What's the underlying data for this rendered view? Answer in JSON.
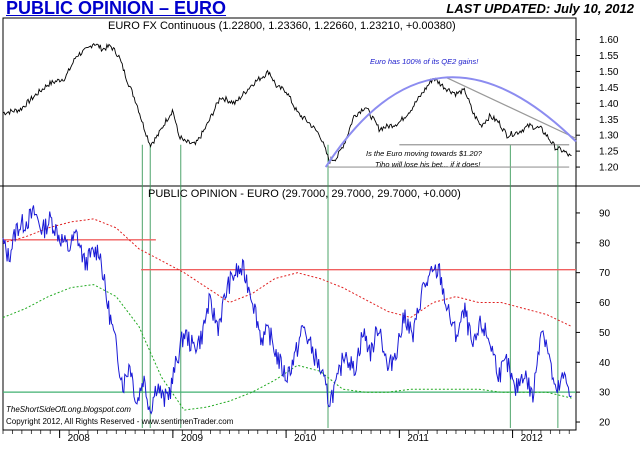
{
  "header": {
    "title": "PUBLIC OPINION – EURO",
    "updated": "LAST UPDATED:  July 10, 2012"
  },
  "colors": {
    "title": "#0000cc",
    "price": "#000000",
    "opinion": "#1a1ad6",
    "upper_band": "#e02020",
    "lower_band": "#22aa22",
    "threshold_high": "#f06060",
    "threshold_low": "#40b070",
    "trend_curve": "#8c8cf0",
    "vertical_markers": "#3a9a5a",
    "ann_blue": "#1a1acc"
  },
  "source_text": "TheShortSideOfLong.blogspot.com",
  "copyright": "Copyright 2012, All Rights Reserved - www.sentimenTrader.com",
  "chart_data": [
    {
      "type": "line",
      "title": "EURO FX Continuous (1.22800, 1.23360, 1.22660, 1.23210, +0.00380)",
      "ylim": [
        1.15,
        1.63
      ],
      "yticks": [
        1.2,
        1.25,
        1.3,
        1.35,
        1.4,
        1.45,
        1.5,
        1.55,
        1.6
      ],
      "ytick_labels": [
        "1.20",
        "1.25",
        "1.30",
        "1.35",
        "1.40",
        "1.45",
        "1.50",
        "1.55",
        "1.60"
      ],
      "series": [
        {
          "name": "EURO FX Continuous",
          "x": [
            2007.5,
            2007.65,
            2007.8,
            2007.9,
            2008.05,
            2008.15,
            2008.25,
            2008.3,
            2008.38,
            2008.45,
            2008.52,
            2008.6,
            2008.68,
            2008.74,
            2008.8,
            2008.87,
            2008.93,
            2009.0,
            2009.05,
            2009.1,
            2009.2,
            2009.3,
            2009.42,
            2009.55,
            2009.7,
            2009.85,
            2009.92,
            2010.0,
            2010.1,
            2010.2,
            2010.3,
            2010.38,
            2010.45,
            2010.52,
            2010.6,
            2010.7,
            2010.82,
            2010.92,
            2011.0,
            2011.1,
            2011.2,
            2011.3,
            2011.4,
            2011.5,
            2011.58,
            2011.65,
            2011.72,
            2011.8,
            2011.88,
            2011.95,
            2012.05,
            2012.15,
            2012.25,
            2012.3,
            2012.38,
            2012.45,
            2012.52
          ],
          "values": [
            1.37,
            1.38,
            1.43,
            1.46,
            1.48,
            1.55,
            1.57,
            1.59,
            1.57,
            1.58,
            1.55,
            1.47,
            1.4,
            1.33,
            1.27,
            1.3,
            1.34,
            1.38,
            1.3,
            1.28,
            1.27,
            1.33,
            1.42,
            1.4,
            1.46,
            1.5,
            1.45,
            1.44,
            1.37,
            1.34,
            1.3,
            1.22,
            1.23,
            1.28,
            1.36,
            1.39,
            1.32,
            1.33,
            1.34,
            1.38,
            1.43,
            1.48,
            1.45,
            1.43,
            1.44,
            1.37,
            1.33,
            1.36,
            1.34,
            1.3,
            1.31,
            1.33,
            1.32,
            1.3,
            1.26,
            1.25,
            1.23
          ]
        }
      ],
      "annotations": [
        "Euro has 100% of its QE2 gains!",
        "Is the Euro moving towards $1.20?",
        "Tiho will lose his bet... if it does!"
      ]
    },
    {
      "type": "line",
      "title": "PUBLIC OPINION - EURO (29.7000, 29.7000, 29.7000, +0.000)",
      "ylim": [
        18,
        95
      ],
      "yticks": [
        20,
        30,
        40,
        50,
        60,
        70,
        80,
        90
      ],
      "ytick_labels": [
        "20",
        "30",
        "40",
        "50",
        "60",
        "70",
        "80",
        "90"
      ],
      "x_tick_labels": [
        "2008",
        "2009",
        "2010",
        "2011",
        "2012"
      ],
      "x_ticks": [
        2008,
        2009,
        2010,
        2011,
        2012
      ],
      "series": [
        {
          "name": "Public Opinion",
          "x": [
            2007.5,
            2007.55,
            2007.62,
            2007.7,
            2007.78,
            2007.85,
            2007.92,
            2008.0,
            2008.08,
            2008.15,
            2008.22,
            2008.28,
            2008.35,
            2008.42,
            2008.5,
            2008.56,
            2008.62,
            2008.68,
            2008.74,
            2008.8,
            2008.86,
            2008.92,
            2008.98,
            2009.03,
            2009.1,
            2009.18,
            2009.25,
            2009.32,
            2009.4,
            2009.48,
            2009.55,
            2009.62,
            2009.7,
            2009.78,
            2009.85,
            2009.92,
            2010.0,
            2010.08,
            2010.15,
            2010.22,
            2010.3,
            2010.38,
            2010.45,
            2010.52,
            2010.6,
            2010.68,
            2010.75,
            2010.82,
            2010.9,
            2010.98,
            2011.05,
            2011.12,
            2011.2,
            2011.28,
            2011.35,
            2011.42,
            2011.5,
            2011.58,
            2011.65,
            2011.72,
            2011.8,
            2011.88,
            2011.95,
            2012.02,
            2012.1,
            2012.18,
            2012.25,
            2012.3,
            2012.38,
            2012.45,
            2012.52
          ],
          "values": [
            80,
            75,
            85,
            87,
            90,
            84,
            88,
            82,
            78,
            83,
            73,
            76,
            78,
            60,
            45,
            32,
            40,
            26,
            35,
            24,
            33,
            27,
            31,
            40,
            50,
            45,
            48,
            60,
            52,
            65,
            70,
            71,
            62,
            48,
            50,
            42,
            35,
            42,
            52,
            45,
            38,
            27,
            33,
            44,
            37,
            50,
            43,
            53,
            37,
            45,
            56,
            48,
            64,
            69,
            71,
            58,
            49,
            57,
            44,
            53,
            47,
            36,
            40,
            30,
            37,
            28,
            52,
            47,
            29,
            35,
            30
          ]
        },
        {
          "name": "Upper Band",
          "x": [
            2007.5,
            2007.7,
            2007.9,
            2008.1,
            2008.3,
            2008.5,
            2008.7,
            2008.9,
            2009.1,
            2009.3,
            2009.5,
            2009.7,
            2009.9,
            2010.1,
            2010.3,
            2010.5,
            2010.7,
            2010.9,
            2011.1,
            2011.3,
            2011.5,
            2011.7,
            2011.9,
            2012.1,
            2012.3,
            2012.52
          ],
          "values": [
            80,
            82,
            85,
            87,
            88,
            85,
            78,
            74,
            70,
            65,
            60,
            63,
            68,
            70,
            68,
            65,
            61,
            57,
            55,
            60,
            62,
            60,
            60,
            58,
            56,
            52
          ]
        },
        {
          "name": "Lower Band",
          "x": [
            2007.5,
            2007.7,
            2007.9,
            2008.1,
            2008.3,
            2008.5,
            2008.7,
            2008.9,
            2009.1,
            2009.3,
            2009.5,
            2009.7,
            2009.9,
            2010.1,
            2010.3,
            2010.5,
            2010.7,
            2010.9,
            2011.1,
            2011.3,
            2011.5,
            2011.7,
            2011.9,
            2012.1,
            2012.3,
            2012.52
          ],
          "values": [
            55,
            58,
            62,
            65,
            66,
            62,
            52,
            35,
            24,
            25,
            27,
            30,
            34,
            39,
            37,
            31,
            30,
            30,
            31,
            31,
            31,
            31,
            30,
            30,
            30,
            28
          ]
        }
      ],
      "thresholds": [
        {
          "value": 81,
          "x_start": 2007.5,
          "x_end": 2008.85
        },
        {
          "value": 71,
          "x_start": 2008.72,
          "x_end": 2012.56
        },
        {
          "value": 30,
          "x_start": 2007.5,
          "x_end": 2012.56
        }
      ],
      "vertical_markers": [
        2008.73,
        2008.8,
        2009.07,
        2010.37,
        2011.98,
        2012.4
      ]
    }
  ]
}
